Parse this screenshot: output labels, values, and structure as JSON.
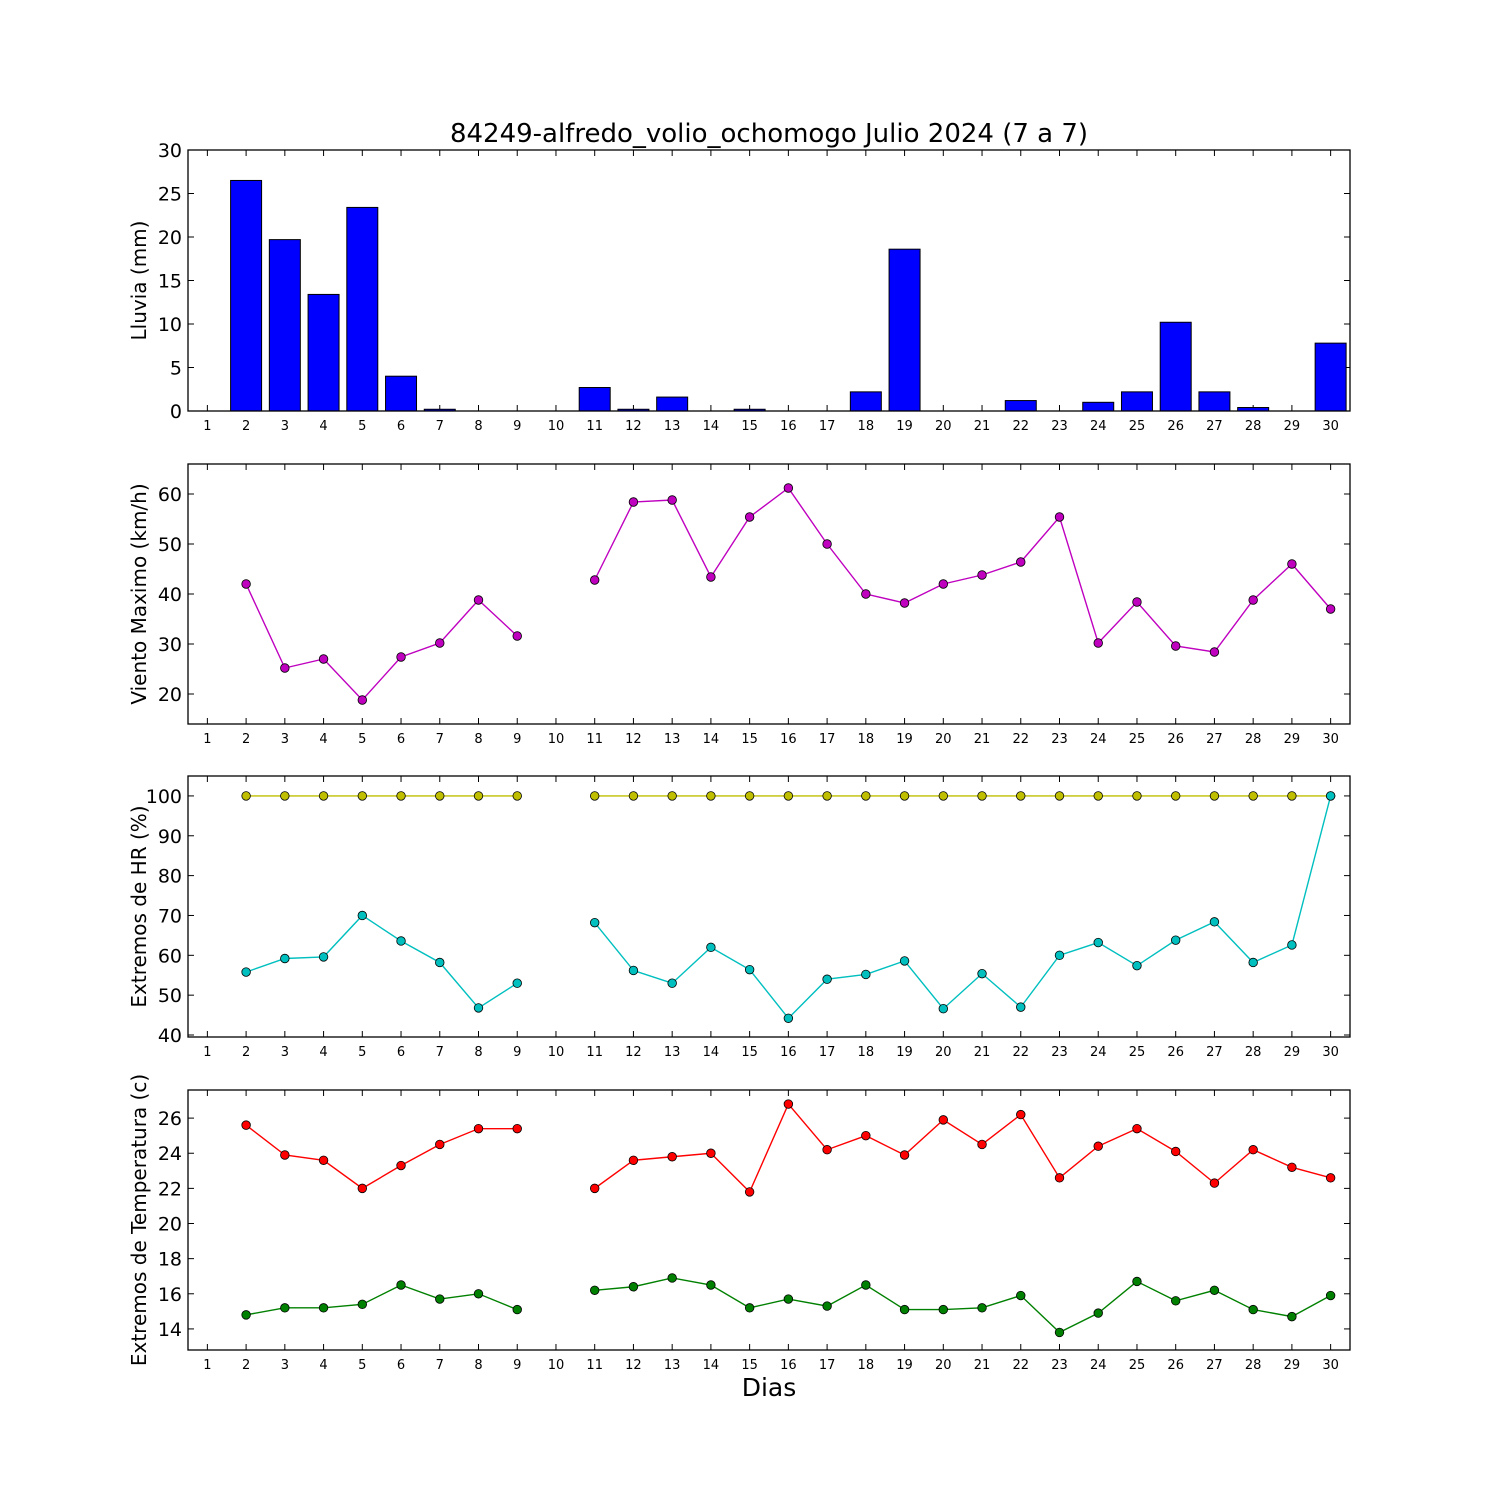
{
  "chart_data": {
    "title": "84249-alfredo_volio_ochomogo Julio 2024  (7 a 7)",
    "xlabel": "Dias",
    "x": [
      1,
      2,
      3,
      4,
      5,
      6,
      7,
      8,
      9,
      10,
      11,
      12,
      13,
      14,
      15,
      16,
      17,
      18,
      19,
      20,
      21,
      22,
      23,
      24,
      25,
      26,
      27,
      28,
      29,
      30
    ],
    "xlim": [
      0.5,
      30.5
    ],
    "panels": [
      {
        "type": "bar",
        "ylabel": "Lluvia (mm)",
        "ylim": [
          0,
          30
        ],
        "yticks": [
          0,
          5,
          10,
          15,
          20,
          25,
          30
        ],
        "series": [
          {
            "color": "#0000ff",
            "values": [
              null,
              26.5,
              19.7,
              13.4,
              23.4,
              4.0,
              0.2,
              0.0,
              0.0,
              null,
              2.7,
              0.2,
              1.6,
              0.0,
              0.2,
              0.0,
              0.0,
              2.2,
              18.6,
              0.0,
              0.0,
              1.2,
              0.0,
              1.0,
              2.2,
              10.2,
              2.2,
              0.4,
              0.0,
              7.8
            ]
          }
        ]
      },
      {
        "type": "line",
        "ylabel": "Viento Maximo (km/h)",
        "ylim": [
          14,
          66
        ],
        "yticks": [
          20,
          30,
          40,
          50,
          60
        ],
        "series": [
          {
            "color": "#bf00bf",
            "values": [
              null,
              42.0,
              25.2,
              27.0,
              18.8,
              27.4,
              30.2,
              38.8,
              31.6,
              null,
              42.8,
              58.4,
              58.8,
              43.4,
              55.4,
              61.2,
              50.0,
              40.0,
              38.2,
              42.0,
              43.8,
              46.4,
              55.4,
              30.2,
              38.4,
              29.6,
              28.4,
              38.8,
              46.0,
              37.0
            ]
          }
        ]
      },
      {
        "type": "line",
        "ylabel": "Extremos de HR (%)",
        "ylim": [
          39.5,
          105
        ],
        "yticks": [
          40,
          50,
          60,
          70,
          80,
          90,
          100
        ],
        "series": [
          {
            "color": "#bfbf00",
            "values": [
              null,
              100,
              100,
              100,
              100,
              100,
              100,
              100,
              100,
              null,
              100,
              100,
              100,
              100,
              100,
              100,
              100,
              100,
              100,
              100,
              100,
              100,
              100,
              100,
              100,
              100,
              100,
              100,
              100,
              100
            ]
          },
          {
            "color": "#00bfbf",
            "values": [
              null,
              55.8,
              59.2,
              59.6,
              70.0,
              63.6,
              58.2,
              46.8,
              53.0,
              null,
              68.2,
              56.2,
              53.0,
              62.0,
              56.4,
              44.2,
              54.0,
              55.2,
              58.6,
              46.6,
              55.4,
              47.0,
              60.0,
              63.2,
              57.4,
              63.8,
              68.4,
              58.2,
              62.6,
              100.0
            ]
          }
        ]
      },
      {
        "type": "line",
        "ylabel": "Extremos de Temperatura (c)",
        "ylim": [
          12.8,
          27.6
        ],
        "yticks": [
          14,
          16,
          18,
          20,
          22,
          24,
          26
        ],
        "series": [
          {
            "color": "#ff0000",
            "values": [
              null,
              25.6,
              23.9,
              23.6,
              22.0,
              23.3,
              24.5,
              25.4,
              25.4,
              null,
              22.0,
              23.6,
              23.8,
              24.0,
              21.8,
              26.8,
              24.2,
              25.0,
              23.9,
              25.9,
              24.5,
              26.2,
              22.6,
              24.4,
              25.4,
              24.1,
              22.3,
              24.2,
              23.2,
              22.6
            ]
          },
          {
            "color": "#008000",
            "values": [
              null,
              14.8,
              15.2,
              15.2,
              15.4,
              16.5,
              15.7,
              16.0,
              15.1,
              null,
              16.2,
              16.4,
              16.9,
              16.5,
              15.2,
              15.7,
              15.3,
              16.5,
              15.1,
              15.1,
              15.2,
              15.9,
              13.8,
              14.9,
              16.7,
              15.6,
              16.2,
              15.1,
              14.7,
              15.9
            ]
          }
        ]
      }
    ]
  }
}
